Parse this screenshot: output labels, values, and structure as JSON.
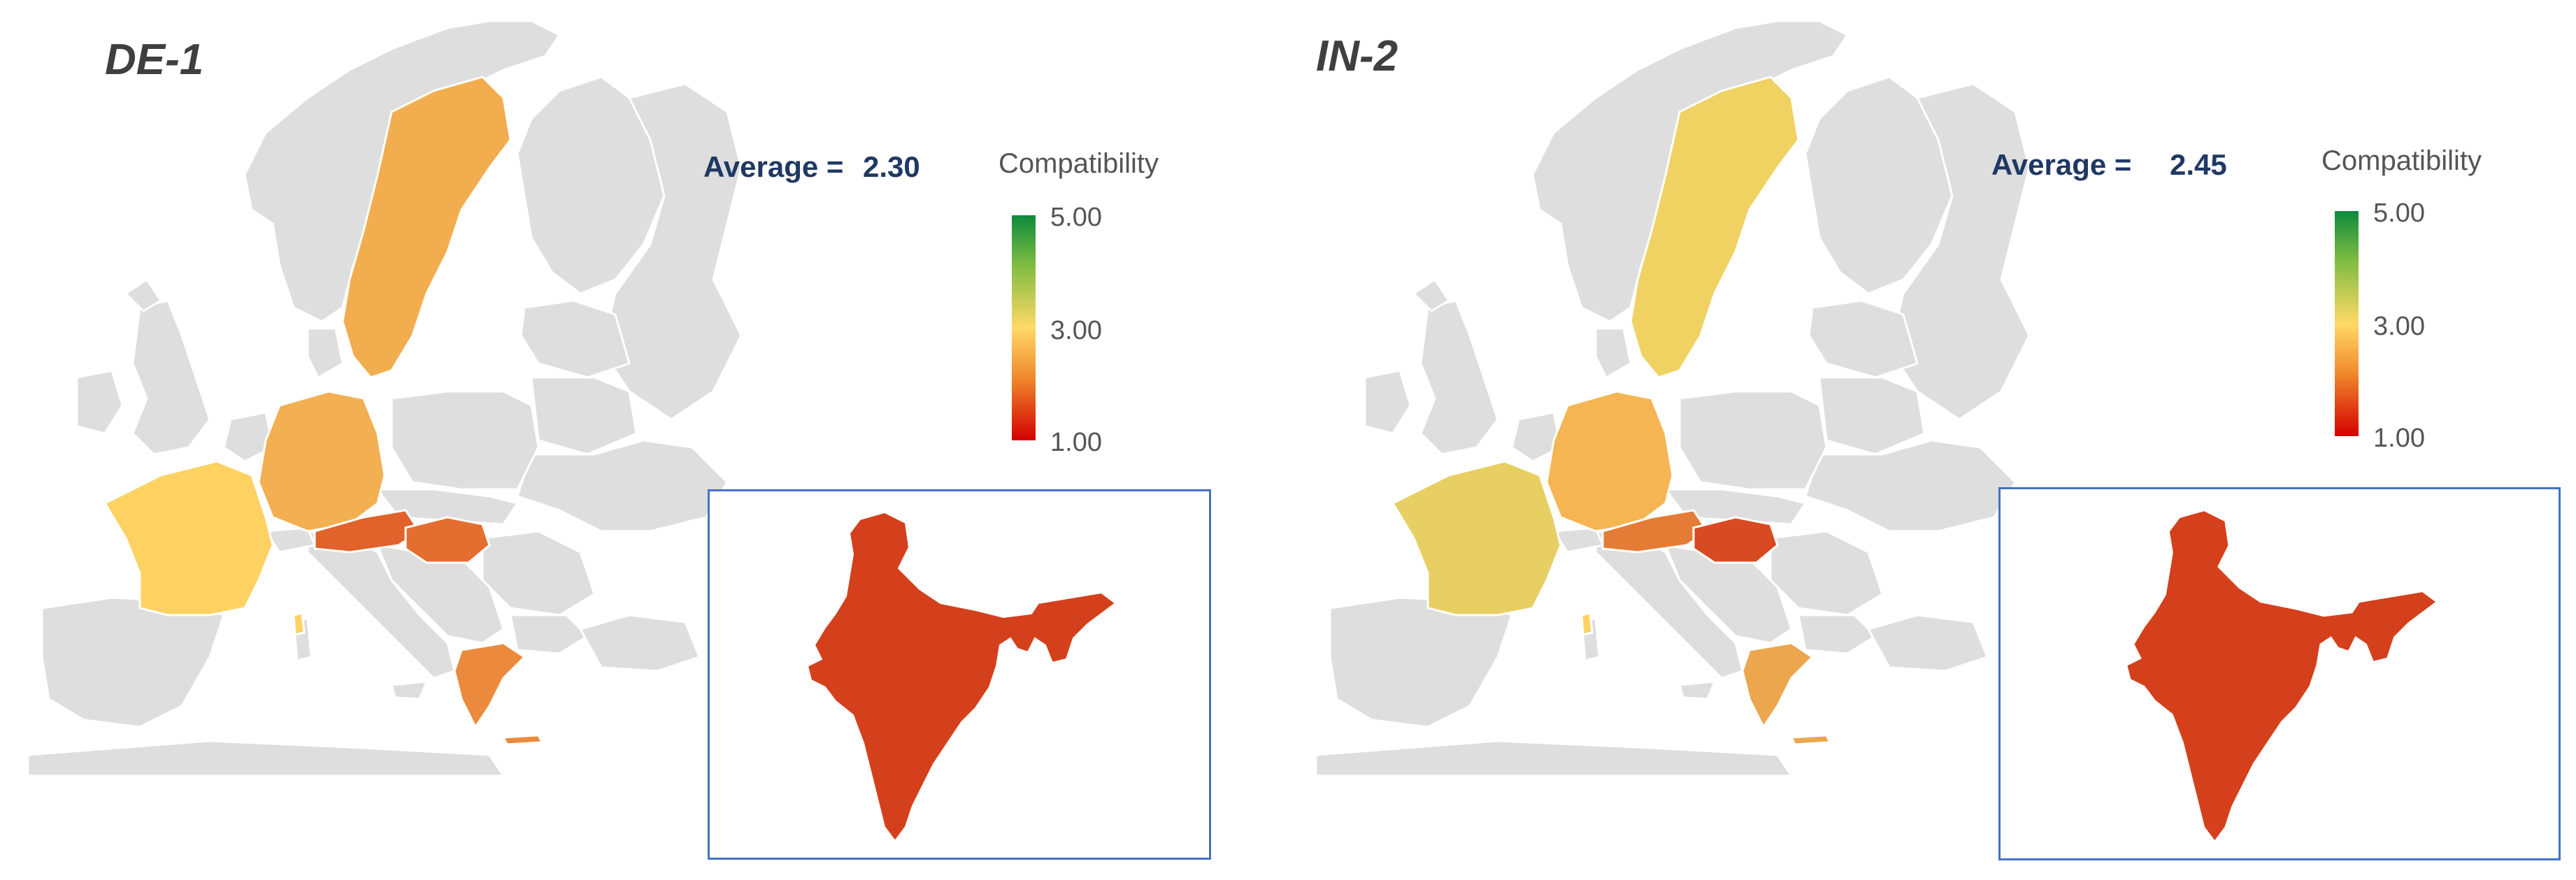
{
  "legend": {
    "title": "Compatibility",
    "max_label": "5.00",
    "mid_label": "3.00",
    "min_label": "1.00",
    "scale_range": [
      1.0,
      5.0
    ],
    "colors": {
      "high": "#0c8a3c",
      "mid": "#ffd966",
      "low": "#d40000",
      "no_data": "#dedede"
    }
  },
  "panels": [
    {
      "title": "DE-1",
      "average_label": "Average =",
      "average_value": "2.30",
      "region_colors": {
        "sweden": "#f2ad4e",
        "germany": "#f2b052",
        "france": "#fdd263",
        "austria": "#e1622a",
        "hungary": "#e46e30",
        "greece": "#eb8a3c",
        "corsica": "#fdd263",
        "india": "#d4401c"
      }
    },
    {
      "title": "IN-2",
      "average_label": "Average =",
      "average_value": "2.45",
      "region_colors": {
        "sweden": "#f0d263",
        "germany": "#f5b552",
        "france": "#e8cf63",
        "austria": "#e57c35",
        "hungary": "#d84b22",
        "greece": "#eca64d",
        "corsica": "#fdd263",
        "india": "#d4401c"
      }
    }
  ]
}
